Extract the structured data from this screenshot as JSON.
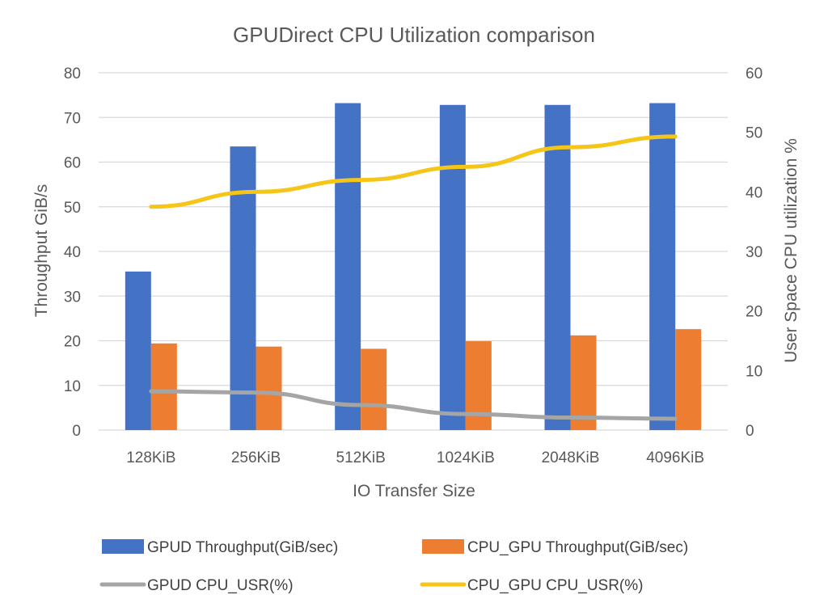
{
  "chart_data": {
    "type": "bar",
    "title": "GPUDirect CPU Utilization comparison",
    "xlabel": "IO Transfer Size",
    "ylabel": "Throughput GiB/s",
    "y2label": "User Space CPU utilization %",
    "categories": [
      "128KiB",
      "256KiB",
      "512KiB",
      "1024KiB",
      "2048KiB",
      "4096KiB"
    ],
    "ylim": [
      0,
      80
    ],
    "yticks": [
      "0",
      "10",
      "20",
      "30",
      "40",
      "50",
      "60",
      "70",
      "80"
    ],
    "y2lim": [
      0,
      60
    ],
    "y2ticks": [
      "0",
      "10",
      "20",
      "30",
      "40",
      "50",
      "60"
    ],
    "grid": true,
    "legend_position": "bottom",
    "series": [
      {
        "name": "GPUD Throughput(GiB/sec)",
        "type": "bar",
        "axis": "left",
        "color": "#4472C4",
        "values": [
          35.5,
          63.5,
          73.2,
          72.8,
          72.8,
          73.2
        ]
      },
      {
        "name": "CPU_GPU Throughput(GiB/sec)",
        "type": "bar",
        "axis": "left",
        "color": "#ED7D31",
        "values": [
          19.4,
          18.7,
          18.2,
          19.9,
          21.2,
          22.6
        ]
      },
      {
        "name": "GPUD CPU_USR(%)",
        "type": "line",
        "axis": "right",
        "color": "#A5A5A5",
        "values": [
          6.5,
          6.3,
          4.2,
          2.7,
          2.1,
          1.9
        ]
      },
      {
        "name": "CPU_GPU CPU_USR(%)",
        "type": "line",
        "axis": "right",
        "color": "#F5C518",
        "values": [
          37.5,
          40.0,
          42.0,
          44.2,
          47.5,
          49.3
        ]
      }
    ]
  }
}
